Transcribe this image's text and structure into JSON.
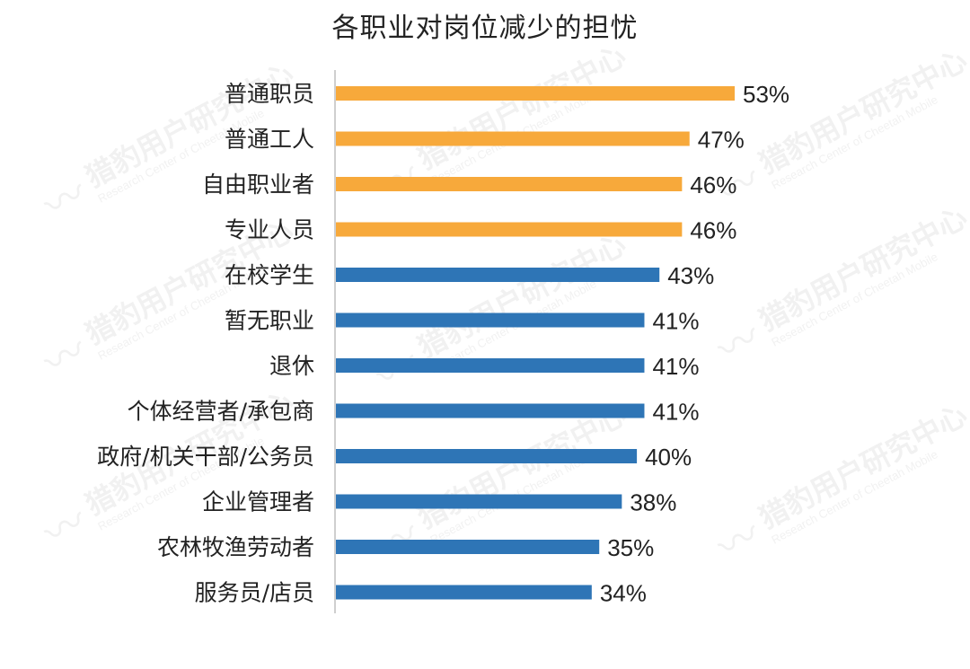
{
  "chart_data": {
    "type": "bar",
    "orientation": "horizontal",
    "title": "各职业对岗位减少的担忧",
    "categories": [
      "普通职员",
      "普通工人",
      "自由职业者",
      "专业人员",
      "在校学生",
      "暂无职业",
      "退休",
      "个体经营者/承包商",
      "政府/机关干部/公务员",
      "企业管理者",
      "农林牧渔劳动者",
      "服务员/店员"
    ],
    "values": [
      53,
      47,
      46,
      46,
      43,
      41,
      41,
      41,
      40,
      38,
      35,
      34
    ],
    "data_labels": [
      "53%",
      "47%",
      "46%",
      "46%",
      "43%",
      "41%",
      "41%",
      "41%",
      "40%",
      "38%",
      "35%",
      "34%"
    ],
    "bar_colors": [
      "#F7A93B",
      "#F7A93B",
      "#F7A93B",
      "#F7A93B",
      "#2E75B6",
      "#2E75B6",
      "#2E75B6",
      "#2E75B6",
      "#2E75B6",
      "#2E75B6",
      "#2E75B6",
      "#2E75B6"
    ],
    "xlim": [
      0,
      60
    ],
    "grid": false,
    "legend": "none",
    "xlabel": "",
    "ylabel": ""
  },
  "colors": {
    "highlight": "#F7A93B",
    "primary": "#2E75B6",
    "axis": "#BFBFBF",
    "text": "#222222"
  },
  "watermark": {
    "logo_icon": "cheetah-wave-logo-icon",
    "logo_glyph": "〰",
    "text_cn": "猎豹用户研究中心",
    "text_en": "Research Center of Cheetah Mobile"
  }
}
